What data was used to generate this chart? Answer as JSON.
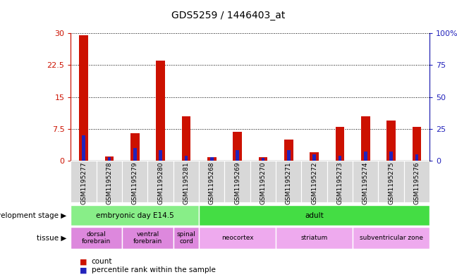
{
  "title": "GDS5259 / 1446403_at",
  "samples": [
    "GSM1195277",
    "GSM1195278",
    "GSM1195279",
    "GSM1195280",
    "GSM1195281",
    "GSM1195268",
    "GSM1195269",
    "GSM1195270",
    "GSM1195271",
    "GSM1195272",
    "GSM1195273",
    "GSM1195274",
    "GSM1195275",
    "GSM1195276"
  ],
  "counts": [
    29.5,
    1.0,
    6.5,
    23.5,
    10.5,
    0.9,
    6.8,
    0.9,
    5.0,
    2.0,
    8.0,
    10.5,
    9.5,
    8.0
  ],
  "percentiles": [
    20,
    3,
    10,
    8,
    4,
    3,
    8,
    2,
    8,
    5,
    4,
    7,
    7,
    5
  ],
  "ylim_left": [
    0,
    30
  ],
  "ylim_right": [
    0,
    100
  ],
  "yticks_left": [
    0,
    7.5,
    15,
    22.5,
    30
  ],
  "yticks_left_labels": [
    "0",
    "7.5",
    "15",
    "22.5",
    "30"
  ],
  "yticks_right_labels": [
    "0",
    "25",
    "50",
    "75",
    "100%"
  ],
  "yticks_right": [
    0,
    25,
    50,
    75,
    100
  ],
  "bar_color_count": "#cc1100",
  "bar_color_pct": "#2222bb",
  "development_stage_groups": [
    {
      "label": "embryonic day E14.5",
      "start": 0,
      "end": 4,
      "color": "#88ee88"
    },
    {
      "label": "adult",
      "start": 5,
      "end": 13,
      "color": "#44dd44"
    }
  ],
  "tissue_groups": [
    {
      "label": "dorsal\nforebrain",
      "start": 0,
      "end": 1,
      "color": "#dd88dd"
    },
    {
      "label": "ventral\nforebrain",
      "start": 2,
      "end": 3,
      "color": "#dd88dd"
    },
    {
      "label": "spinal\ncord",
      "start": 4,
      "end": 4,
      "color": "#dd88dd"
    },
    {
      "label": "neocortex",
      "start": 5,
      "end": 7,
      "color": "#eeaaee"
    },
    {
      "label": "striatum",
      "start": 8,
      "end": 10,
      "color": "#eeaaee"
    },
    {
      "label": "subventricular zone",
      "start": 11,
      "end": 13,
      "color": "#eeaaee"
    }
  ]
}
